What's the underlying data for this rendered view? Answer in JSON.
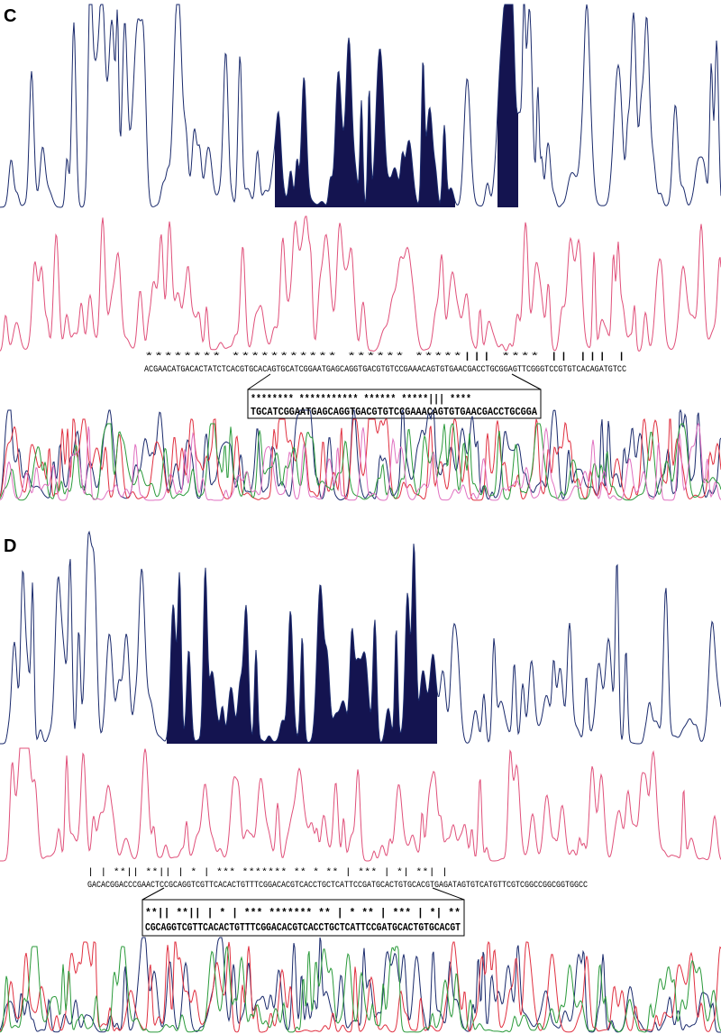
{
  "panels": [
    {
      "label": "C",
      "sequence": "ACGAACATGACACTATCTCACGTGCACAGTGCATCGGAATGAGCAGGTGACGTGTCCGAAACAGTGTGAACGACCTGCGGAGTTCGGGTCCGTGTCACAGATGTCC",
      "markers": "                             ******** *********** ****** *****|||     ****  ||   |||  |         ",
      "box_markers": "******** *********** ****** *****|||     ****",
      "box_sequence": "TGCATCGGAATGAGCAGGTGACGTGTCCGAAACAGTGTGAACGACCTGCGGA"
    },
    {
      "label": "D",
      "sequence": "GACACGGACCCGAACTCCGCAGGTCGTTCACACTGTTTCGGACACGTCACCTGCTCATTCCGATGCACTGTGCACGTGAGATAGTGTCATGTTCGTCGGCCGGCGGTGGCC",
      "markers": "|         |  **|| **|| | * | ***  *******  ** * ** | ***    |    *| **| |",
      "box_markers": "**|| **|| | * | ***  *******  ** | * ** | ***    |    *| **",
      "box_sequence": "CGCAGGTCGTTCACACTGTTTCGGACACGTCACCTGCTCATTCCGATGCACTGTGCACGT"
    }
  ]
}
